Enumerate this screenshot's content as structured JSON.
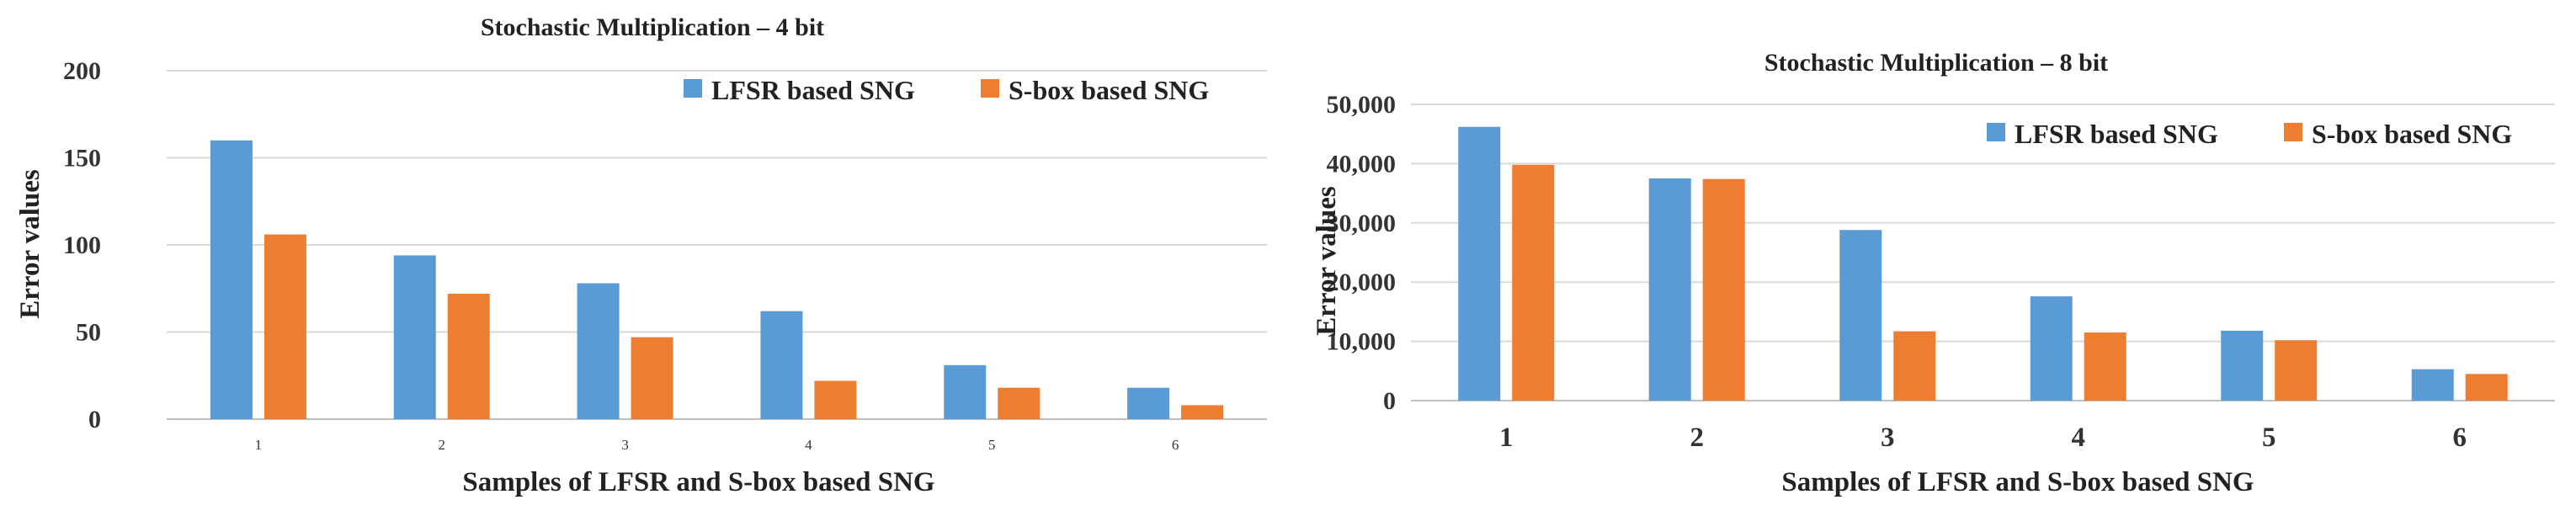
{
  "chart_data": [
    {
      "type": "bar",
      "title": "Stochastic Multiplication – 4 bit",
      "xlabel": "Samples of LFSR and S-box based SNG",
      "ylabel": "Error values",
      "categories": [
        "1",
        "2",
        "3",
        "4",
        "5",
        "6"
      ],
      "series": [
        {
          "name": "LFSR based SNG",
          "values": [
            160,
            94,
            78,
            62,
            31,
            18
          ],
          "color": "#5b9bd5"
        },
        {
          "name": "S-box based SNG",
          "values": [
            106,
            72,
            47,
            22,
            18,
            8
          ],
          "color": "#ed7d31"
        }
      ],
      "yticks": [
        "0",
        "50",
        "100",
        "150",
        "200"
      ],
      "ylim": [
        0,
        200
      ],
      "grid": true,
      "legend": "top-right"
    },
    {
      "type": "bar",
      "title": "Stochastic Multiplication – 8 bit",
      "xlabel": "Samples of LFSR and S-box based SNG",
      "ylabel": "Error values",
      "categories": [
        "1",
        "2",
        "3",
        "4",
        "5",
        "6"
      ],
      "series": [
        {
          "name": "LFSR based SNG",
          "values": [
            46200,
            37500,
            28800,
            17600,
            11800,
            5300
          ],
          "color": "#5b9bd5"
        },
        {
          "name": "S-box based SNG",
          "values": [
            39800,
            37400,
            11700,
            11500,
            10200,
            4500
          ],
          "color": "#ed7d31"
        }
      ],
      "yticks": [
        "0",
        "10,000",
        "20,000",
        "30,000",
        "40,000",
        "50,000"
      ],
      "ylim": [
        0,
        50000
      ],
      "grid": true,
      "legend": "top-right"
    }
  ]
}
